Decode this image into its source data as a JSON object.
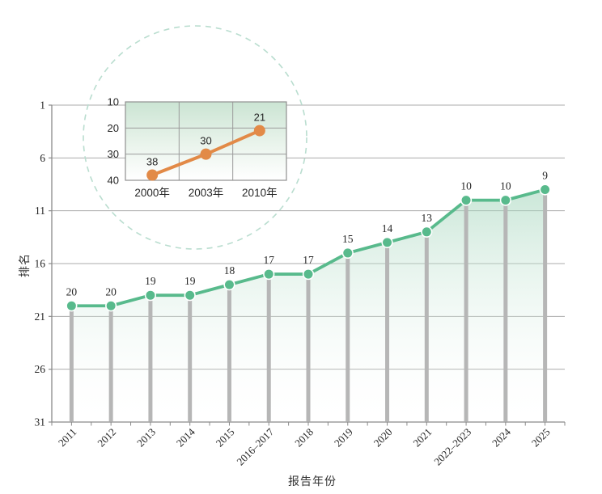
{
  "style": {
    "background": "#ffffff",
    "green_line": "#58ba8c",
    "green_fill_top": "#9fd3b8",
    "drop_bar": "#b6b6b6",
    "gridline": "#ababab",
    "axis_line": "#8a8a8a",
    "text": "#262626",
    "orange_line": "#e28a47",
    "inset_fill_top": "#cbe4d3",
    "inset_border": "#8f8f8f",
    "inset_gridline": "#9b9b9b",
    "dashed_circle": "#b9ddcf"
  },
  "chart_data": [
    {
      "id": "main-ranking-trend",
      "type": "line",
      "title": "",
      "xlabel": "报告年份",
      "ylabel": "排名",
      "categories": [
        "2011",
        "2012",
        "2013",
        "2014",
        "2015",
        "2016–2017",
        "2018",
        "2019",
        "2020",
        "2021",
        "2022–2023",
        "2024",
        "2025"
      ],
      "values": [
        20,
        20,
        19,
        19,
        18,
        17,
        17,
        15,
        14,
        13,
        10,
        10,
        9
      ],
      "yticks": [
        1,
        6,
        11,
        16,
        21,
        26,
        31
      ],
      "ylim": [
        1,
        31
      ],
      "y_axis_inverted": true,
      "grid": true,
      "marker": "circle",
      "has_drop_lines": true,
      "legend": "none"
    },
    {
      "id": "inset-early-years",
      "type": "line",
      "title": "",
      "xlabel": "",
      "ylabel": "",
      "categories": [
        "2000年",
        "2003年",
        "2010年"
      ],
      "values": [
        38,
        30,
        21
      ],
      "yticks": [
        10,
        20,
        30,
        40
      ],
      "ylim": [
        10,
        40
      ],
      "y_axis_inverted": true,
      "grid": true,
      "marker": "circle",
      "legend": "none"
    }
  ]
}
